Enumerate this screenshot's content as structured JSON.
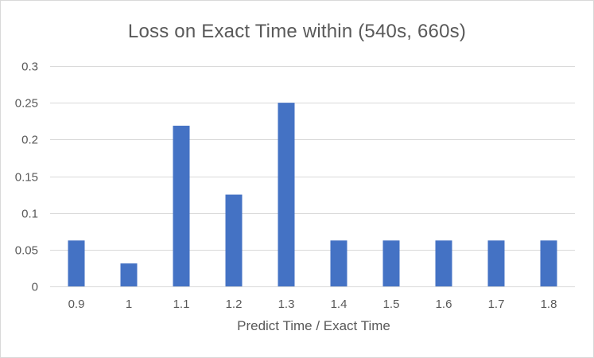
{
  "chart_data": {
    "type": "bar",
    "title": "Loss on Exact Time within (540s, 660s)",
    "xlabel": "Predict Time / Exact Time",
    "ylabel": "",
    "categories": [
      "0.9",
      "1",
      "1.1",
      "1.2",
      "1.3",
      "1.4",
      "1.5",
      "1.6",
      "1.7",
      "1.8"
    ],
    "values": [
      0.0625,
      0.03125,
      0.21875,
      0.125,
      0.25,
      0.0625,
      0.0625,
      0.0625,
      0.0625,
      0.0625
    ],
    "ylim": [
      0,
      0.3
    ],
    "yticks": [
      "0",
      "0.05",
      "0.1",
      "0.15",
      "0.2",
      "0.25",
      "0.3"
    ],
    "grid": true,
    "legend": "none",
    "bar_color": "#4472C4",
    "grid_color": "#d9d9d9"
  }
}
